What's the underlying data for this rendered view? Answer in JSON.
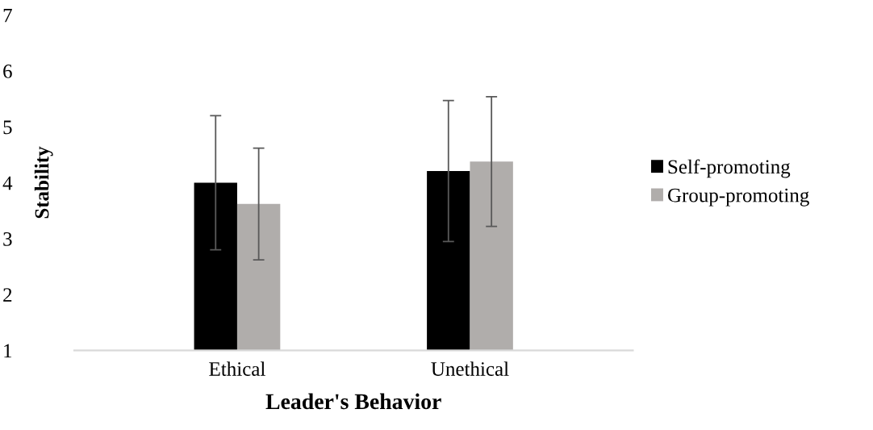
{
  "chart_data": {
    "type": "bar",
    "xlabel": "Leader's Behavior",
    "ylabel": "Stability",
    "categories": [
      "Ethical",
      "Unethical"
    ],
    "series": [
      {
        "name": "Self-promoting",
        "color": "#000000",
        "values": [
          4.0,
          4.21
        ],
        "errors": [
          1.2,
          1.26
        ]
      },
      {
        "name": "Group-promoting",
        "color": "#b0adab",
        "values": [
          3.62,
          4.38
        ],
        "errors": [
          1.0,
          1.16
        ]
      }
    ],
    "ylim": [
      1,
      7
    ],
    "yticks": [
      1,
      2,
      3,
      4,
      5,
      6,
      7
    ],
    "grid": false,
    "legend": "right"
  }
}
